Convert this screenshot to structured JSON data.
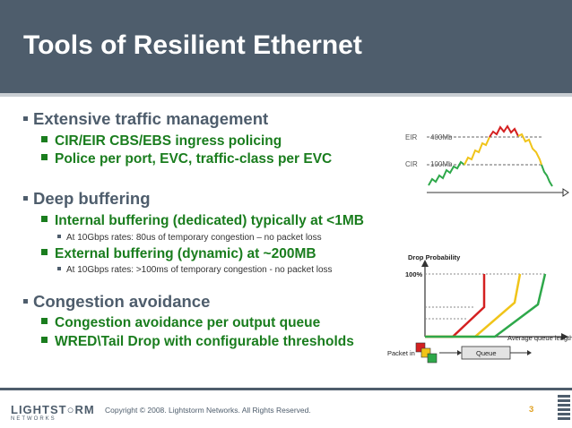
{
  "slide": {
    "title": "Tools of Resilient Ethernet",
    "page_number": "3",
    "copyright": "Copyright © 2008. Lightstorm Networks. All Rights Reserved.",
    "logo_main": "LIGHTST○RM",
    "logo_sub": "NETWORKS"
  },
  "bullets": {
    "traffic_mgmt": "Extensive traffic management",
    "ingress_policing": "CIR/EIR CBS/EBS ingress policing",
    "police_per_port": "Police per port, EVC, traffic-class per EVC",
    "deep_buffering": "Deep buffering",
    "internal_buffering": "Internal buffering (dedicated) typically at <1MB",
    "internal_note": "At 10Gbps rates:  80us of temporary congestion – no packet loss",
    "external_buffering": "External buffering (dynamic) at ~200MB",
    "external_note": "At 10Gbps rates: >100ms of temporary congestion - no packet loss",
    "congestion_avoidance": "Congestion avoidance",
    "per_output_queue": "Congestion avoidance per output queue",
    "wred": "WRED\\Tail Drop with configurable thresholds"
  },
  "rate_chart": {
    "eir_label": "EIR",
    "eir_value": "400Mb",
    "cir_label": "CIR",
    "cir_value": "100Mb"
  },
  "wred_chart": {
    "title": "Drop Probability",
    "y_max_label": "100%",
    "x_label": "Average queue length",
    "packet_in_label": "Packet in",
    "queue_label": "Queue"
  },
  "colors": {
    "header": "#4e5d6c",
    "bullet_green": "#1a7d1e",
    "red": "#d42020",
    "yellow": "#f0c419",
    "green": "#2ea84a",
    "accent_orange": "#e0a020"
  }
}
